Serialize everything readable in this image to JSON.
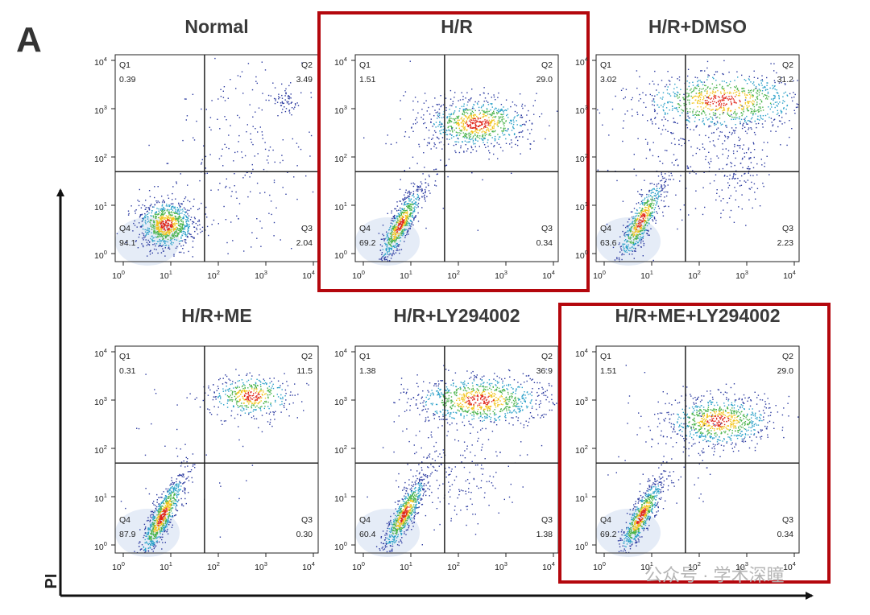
{
  "figure": {
    "label": "A",
    "y_axis_label": "PI",
    "tick_base": "10",
    "tick_exponents": [
      "0",
      "1",
      "2",
      "3",
      "4"
    ],
    "panels": [
      {
        "title": "Normal",
        "highlight": false,
        "quadrants": [
          {
            "name": "Q1",
            "value": "0.39"
          },
          {
            "name": "Q2",
            "value": "3.49"
          },
          {
            "name": "Q3",
            "value": "2.04"
          },
          {
            "name": "Q4",
            "value": "94.1"
          }
        ]
      },
      {
        "title": "H/R",
        "highlight": true,
        "quadrants": [
          {
            "name": "Q1",
            "value": "1.51"
          },
          {
            "name": "Q2",
            "value": "29.0"
          },
          {
            "name": "Q3",
            "value": "0.34"
          },
          {
            "name": "Q4",
            "value": "69.2"
          }
        ]
      },
      {
        "title": "H/R+DMSO",
        "highlight": false,
        "quadrants": [
          {
            "name": "Q1",
            "value": "3.02"
          },
          {
            "name": "Q2",
            "value": "31.2"
          },
          {
            "name": "Q3",
            "value": "2.23"
          },
          {
            "name": "Q4",
            "value": "63.6"
          }
        ]
      },
      {
        "title": "H/R+ME",
        "highlight": false,
        "quadrants": [
          {
            "name": "Q1",
            "value": "0.31"
          },
          {
            "name": "Q2",
            "value": "11.5"
          },
          {
            "name": "Q3",
            "value": "0.30"
          },
          {
            "name": "Q4",
            "value": "87.9"
          }
        ]
      },
      {
        "title": "H/R+LY294002",
        "highlight": false,
        "quadrants": [
          {
            "name": "Q1",
            "value": "1.38"
          },
          {
            "name": "Q2",
            "value": "36.9"
          },
          {
            "name": "Q3",
            "value": "1.38"
          },
          {
            "name": "Q4",
            "value": "60.4"
          }
        ]
      },
      {
        "title": "H/R+ME+LY294002",
        "highlight": true,
        "quadrants": [
          {
            "name": "Q1",
            "value": "1.51"
          },
          {
            "name": "Q2",
            "value": "29.0"
          },
          {
            "name": "Q3",
            "value": "0.34"
          },
          {
            "name": "Q4",
            "value": "69.2"
          }
        ]
      }
    ],
    "watermark": "公众号 · 学术深瞳"
  }
}
